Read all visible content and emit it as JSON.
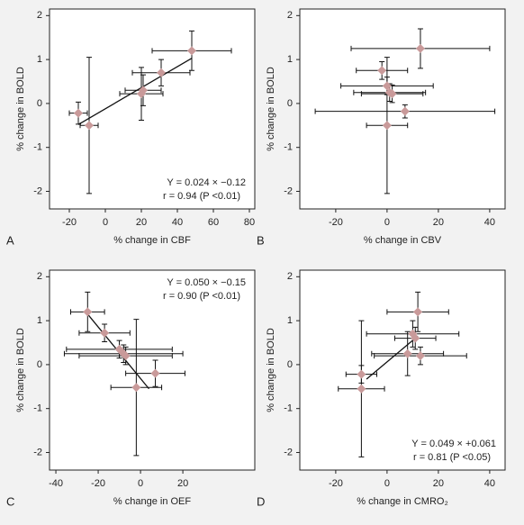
{
  "chart_data": [
    {
      "type": "scatter",
      "panel": "A",
      "xlabel": "% change in CBF",
      "ylabel": "% change in BOLD",
      "x": [
        -15,
        -9,
        20,
        21,
        31,
        48
      ],
      "values": [
        -0.22,
        -0.5,
        0.22,
        0.3,
        0.7,
        1.2
      ],
      "xerr": [
        5,
        5,
        12,
        10,
        16,
        22
      ],
      "yerr": [
        0.25,
        1.55,
        0.6,
        0.35,
        0.3,
        0.45
      ],
      "color": "#c99a9a",
      "fit_x": [
        -15,
        48
      ],
      "fit_y": [
        -0.48,
        1.03
      ],
      "annotation": [
        "Y = 0.024 × −0.12",
        "r = 0.94 (P <0.01)"
      ],
      "annotation_corner": "bottom-right",
      "xlim": [
        -31,
        83
      ],
      "ylim": [
        -2.4,
        2.15
      ],
      "xticks": [
        -20,
        0,
        20,
        40,
        60,
        80
      ],
      "yticks": [
        -2,
        -1,
        0,
        1,
        2
      ]
    },
    {
      "type": "scatter",
      "panel": "B",
      "xlabel": "% change in CBV",
      "ylabel": "% change in BOLD",
      "x": [
        13,
        -2,
        0,
        1,
        2,
        7,
        0
      ],
      "values": [
        1.25,
        0.75,
        0.4,
        0.25,
        0.22,
        -0.18,
        -0.5
      ],
      "xerr": [
        27,
        10,
        18,
        14,
        12,
        35,
        8
      ],
      "yerr": [
        0.45,
        0.2,
        0.2,
        0.2,
        0.2,
        0.15,
        1.55
      ],
      "color": "#c99a9a",
      "xlim": [
        -34,
        46
      ],
      "ylim": [
        -2.4,
        2.15
      ],
      "xticks": [
        -20,
        0,
        20,
        40
      ],
      "yticks": [
        -2,
        -1,
        0,
        1,
        2
      ]
    },
    {
      "type": "scatter",
      "panel": "C",
      "xlabel": "% change in OEF",
      "ylabel": "% change in BOLD",
      "x": [
        -25,
        -17,
        -10,
        -8,
        -7,
        7,
        -2
      ],
      "values": [
        1.2,
        0.72,
        0.35,
        0.25,
        0.2,
        -0.2,
        -0.52
      ],
      "xerr": [
        8,
        12,
        25,
        28,
        22,
        14,
        12
      ],
      "yerr": [
        0.45,
        0.2,
        0.2,
        0.2,
        0.2,
        0.3,
        1.55
      ],
      "color": "#c99a9a",
      "fit_x": [
        -25,
        4
      ],
      "fit_y": [
        1.15,
        -0.55
      ],
      "annotation": [
        "Y = 0.050 × −0.15",
        "r = 0.90 (P <0.01)"
      ],
      "annotation_corner": "top-right",
      "xlim": [
        -43,
        54
      ],
      "ylim": [
        -2.4,
        2.15
      ],
      "xticks": [
        -40,
        -20,
        0,
        20
      ],
      "yticks": [
        -2,
        -1,
        0,
        1,
        2
      ]
    },
    {
      "type": "scatter",
      "panel": "D",
      "xlabel": "% change in CMRO₂",
      "ylabel": "% change in BOLD",
      "x": [
        12,
        10,
        11,
        13,
        8,
        -10,
        -10
      ],
      "values": [
        1.2,
        0.7,
        0.6,
        0.2,
        0.25,
        -0.22,
        -0.55
      ],
      "xerr": [
        12,
        18,
        8,
        18,
        14,
        6,
        9
      ],
      "yerr": [
        0.45,
        0.3,
        0.25,
        0.2,
        0.5,
        0.2,
        1.55
      ],
      "color": "#c99a9a",
      "fit_x": [
        -8,
        12
      ],
      "fit_y": [
        -0.33,
        0.65
      ],
      "annotation": [
        "Y = 0.049 × +0.061",
        "r = 0.81 (P <0.05)"
      ],
      "annotation_corner": "bottom-right",
      "xlim": [
        -34,
        46
      ],
      "ylim": [
        -2.4,
        2.15
      ],
      "xticks": [
        -20,
        0,
        20,
        40
      ],
      "yticks": [
        -2,
        -1,
        0,
        1,
        2
      ]
    }
  ]
}
